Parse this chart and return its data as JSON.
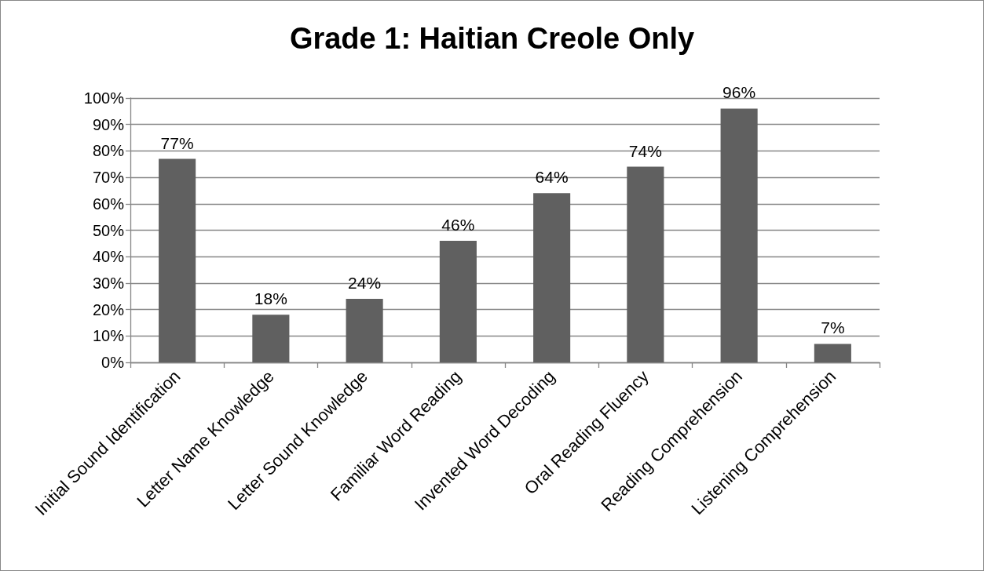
{
  "chart_data": {
    "type": "bar",
    "title": "Grade 1: Haitian Creole Only",
    "categories": [
      "Initial Sound Identification",
      "Letter Name Knowledge",
      "Letter Sound Knowledge",
      "Familiar Word Reading",
      "Invented Word Decoding",
      "Oral Reading Fluency",
      "Reading Comprehension",
      "Listening Comprehension"
    ],
    "values": [
      77,
      18,
      24,
      46,
      64,
      74,
      96,
      7
    ],
    "value_labels": [
      "77%",
      "18%",
      "24%",
      "46%",
      "64%",
      "74%",
      "96%",
      "7%"
    ],
    "color": "#606060",
    "ylim": [
      0,
      100
    ],
    "yticks": [
      {
        "value": 0,
        "label": "0%"
      },
      {
        "value": 10,
        "label": "10%"
      },
      {
        "value": 20,
        "label": "20%"
      },
      {
        "value": 30,
        "label": "30%"
      },
      {
        "value": 40,
        "label": "40%"
      },
      {
        "value": 50,
        "label": "50%"
      },
      {
        "value": 60,
        "label": "60%"
      },
      {
        "value": 70,
        "label": "70%"
      },
      {
        "value": 80,
        "label": "80%"
      },
      {
        "value": 90,
        "label": "90%"
      },
      {
        "value": 100,
        "label": "100%"
      }
    ],
    "grid": "y"
  }
}
